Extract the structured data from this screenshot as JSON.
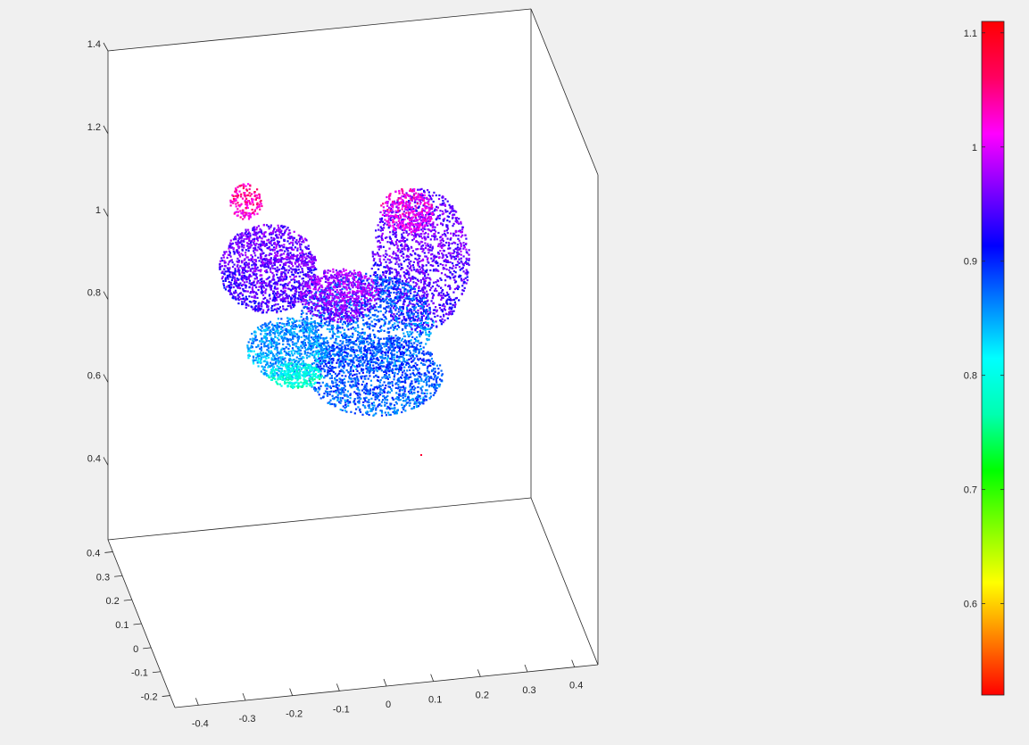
{
  "figure": {
    "background": "#f0f0f0",
    "axes_color": "#262626"
  },
  "chart_data": {
    "type": "scatter",
    "title": "",
    "xlabel": "",
    "ylabel": "",
    "zlabel": "",
    "projection": "3d",
    "grid": false,
    "box": true,
    "xlim": [
      -0.45,
      0.45
    ],
    "ylim": [
      -0.25,
      0.45
    ],
    "zlim": [
      0.22,
      1.4
    ],
    "x_ticks": [
      "-0.4",
      "-0.3",
      "-0.2",
      "-0.1",
      "0",
      "0.1",
      "0.2",
      "0.3",
      "0.4"
    ],
    "y_ticks": [
      "-0.2",
      "-0.1",
      "0",
      "0.1",
      "0.2",
      "0.3",
      "0.4"
    ],
    "z_ticks": [
      "0.4",
      "0.6",
      "0.8",
      "1",
      "1.2",
      "1.4"
    ],
    "point_cloud": {
      "description_visible": "dense colored 3D point cloud (depth-coloured surface)",
      "color_dimension": "depth value",
      "value_range": [
        0.52,
        1.11
      ],
      "dominant_colors": [
        "#7a1cf0",
        "#1a2cf2",
        "#1ea0f0",
        "#30f0d0",
        "#f0208c"
      ]
    },
    "colorbar": {
      "colormap": "hsv",
      "limits": [
        0.52,
        1.11
      ],
      "tick_labels": [
        "1.1",
        "1",
        "0.9",
        "0.8",
        "0.7",
        "0.6"
      ],
      "tick_values": [
        1.1,
        1.0,
        0.9,
        0.8,
        0.7,
        0.6
      ],
      "stops": [
        "#ff0000",
        "#ff8000",
        "#ffff00",
        "#80ff00",
        "#00ff00",
        "#00ffb0",
        "#00ffff",
        "#0080ff",
        "#0000ff",
        "#8000ff",
        "#ff00ff",
        "#ff0060",
        "#ff0000"
      ]
    }
  }
}
